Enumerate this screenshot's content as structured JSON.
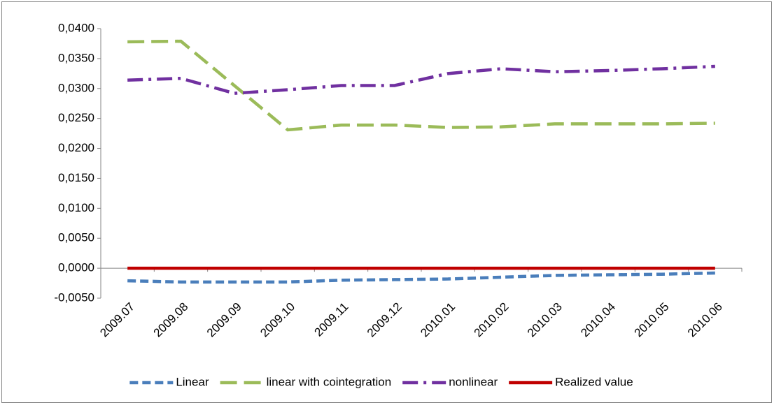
{
  "chart_data": {
    "type": "line",
    "categories": [
      "2009.07",
      "2009.08",
      "2009.09",
      "2009.10",
      "2009.11",
      "2009.12",
      "2010.01",
      "2010.02",
      "2010.03",
      "2010.04",
      "2010.05",
      "2010.06"
    ],
    "series": [
      {
        "name": "Linear",
        "color": "#4a7ebb",
        "dash": "dash",
        "values": [
          -0.0021,
          -0.0023,
          -0.0023,
          -0.0023,
          -0.002,
          -0.0019,
          -0.0018,
          -0.0015,
          -0.0012,
          -0.0011,
          -0.001,
          -0.0008
        ]
      },
      {
        "name": "linear with cointegration",
        "color": "#9bbb59",
        "dash": "longdash",
        "values": [
          0.0378,
          0.0379,
          0.0305,
          0.0231,
          0.0239,
          0.0239,
          0.0235,
          0.0236,
          0.0241,
          0.0241,
          0.0241,
          0.0242
        ]
      },
      {
        "name": "nonlinear",
        "color": "#7030a0",
        "dash": "dashdot",
        "values": [
          0.0314,
          0.0317,
          0.0292,
          0.0298,
          0.0305,
          0.0305,
          0.0325,
          0.0333,
          0.0328,
          0.033,
          0.0333,
          0.0337
        ]
      },
      {
        "name": "Realized value",
        "color": "#c00000",
        "dash": "solid",
        "values": [
          0,
          0,
          0,
          0,
          0,
          0,
          0,
          0,
          0,
          0,
          0,
          0
        ]
      }
    ],
    "ylim": [
      -0.005,
      0.04
    ],
    "yticks": [
      {
        "value": -0.005,
        "label": "-0,0050"
      },
      {
        "value": 0,
        "label": "0,0000"
      },
      {
        "value": 0.005,
        "label": "0,0050"
      },
      {
        "value": 0.01,
        "label": "0,0100"
      },
      {
        "value": 0.015,
        "label": "0,0150"
      },
      {
        "value": 0.02,
        "label": "0,0200"
      },
      {
        "value": 0.025,
        "label": "0,0250"
      },
      {
        "value": 0.03,
        "label": "0,0300"
      },
      {
        "value": 0.035,
        "label": "0,0350"
      },
      {
        "value": 0.04,
        "label": "0,0400"
      }
    ],
    "grid": false,
    "legend": "bottom"
  }
}
